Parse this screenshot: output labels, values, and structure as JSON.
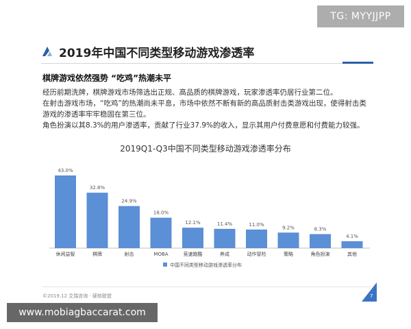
{
  "watermark_top": "TG: MYYJJPP",
  "watermark_bottom": "www.mobiagbaccarat.com",
  "title": "2019年中国不同类型移动游戏渗透率",
  "subtitle": "棋牌游戏依然强势 “吃鸡”热潮未平",
  "paragraphs": [
    "经历前期洗牌，棋牌游戏市场筛选出正规、高品质的棋牌游戏，玩家渗透率仍居行业第二位。",
    "在射击游戏市场，“吃鸡”的热潮尚未平息，市场中依然不断有新的高品质射击类游戏出现，使得射击类",
    "游戏的渗透率牢牢稳固在第三位。",
    "角色扮演以其8.3%的用户渗透率，贡献了行业37.9%的收入，显示其用户付费意愿和付费能力较强。"
  ],
  "footer": "©2019.12 艾瑞咨询 · 硬核联盟",
  "page_number": "7",
  "colors": {
    "bar": "#5b8fd6",
    "accent": "#2d5ea8"
  },
  "chart_data": {
    "type": "bar",
    "title": "2019Q1-Q3中国不同类型移动游戏渗透率分布",
    "categories": [
      "休闲益智",
      "棋牌",
      "射击",
      "MOBA",
      "竞速跑酷",
      "养成",
      "动作冒险",
      "策略",
      "角色扮演",
      "其他"
    ],
    "series": [
      {
        "name": "中国不同类型移动游戏渗透率分布",
        "values": [
          43.0,
          32.8,
          24.9,
          18.0,
          12.1,
          11.4,
          11.0,
          9.2,
          8.3,
          4.1
        ]
      }
    ],
    "value_labels": [
      "43.0%",
      "32.8%",
      "24.9%",
      "18.0%",
      "12.1%",
      "11.4%",
      "11.0%",
      "9.2%",
      "8.3%",
      "4.1%"
    ],
    "ylim": [
      0,
      43
    ],
    "grid": false,
    "legend_position": "bottom-center"
  }
}
